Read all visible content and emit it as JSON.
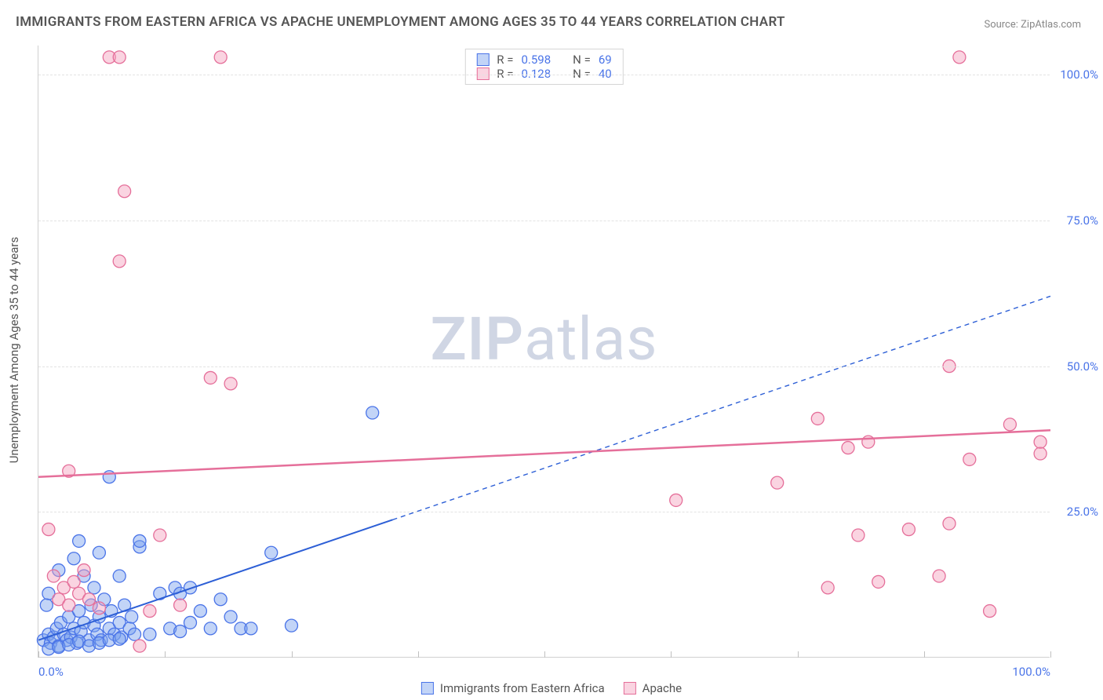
{
  "title": "IMMIGRANTS FROM EASTERN AFRICA VS APACHE UNEMPLOYMENT AMONG AGES 35 TO 44 YEARS CORRELATION CHART",
  "source_prefix": "Source: ",
  "source_link": "ZipAtlas.com",
  "yaxis_label": "Unemployment Among Ages 35 to 44 years",
  "watermark_bold": "ZIP",
  "watermark_rest": "atlas",
  "chart": {
    "type": "scatter",
    "xlim": [
      0,
      100
    ],
    "ylim": [
      0,
      105
    ],
    "xticks": [
      0,
      12.5,
      25,
      37.5,
      50,
      62.5,
      75,
      87.5,
      100
    ],
    "xtick_labels": {
      "0": "0.0%",
      "100": "100.0%"
    },
    "ygrid": [
      25,
      50,
      75,
      100
    ],
    "ytick_labels": {
      "25": "25.0%",
      "50": "50.0%",
      "75": "75.0%",
      "100": "100.0%"
    },
    "grid_color": "#e2e2e2",
    "axis_color": "#d0d0d0",
    "label_color": "#4a74e8",
    "text_color": "#555555",
    "series": [
      {
        "id": "immigrants",
        "label": "Immigrants from Eastern Africa",
        "fill": "rgba(119,160,237,0.45)",
        "stroke": "#4a74e8",
        "marker_r": 8,
        "R": "0.598",
        "N": "69",
        "trend": {
          "y0": 3,
          "y100": 62,
          "color": "#2d5fd6",
          "width": 2,
          "solid_until_x": 35
        },
        "points": [
          [
            0.5,
            3
          ],
          [
            1,
            4
          ],
          [
            1.2,
            2.5
          ],
          [
            1.5,
            3.5
          ],
          [
            1.8,
            5
          ],
          [
            2,
            2
          ],
          [
            2.2,
            6
          ],
          [
            2.5,
            4
          ],
          [
            2.8,
            3
          ],
          [
            3,
            7
          ],
          [
            3.2,
            3.5
          ],
          [
            3.5,
            5
          ],
          [
            3.8,
            2.5
          ],
          [
            4,
            8
          ],
          [
            4.2,
            4.5
          ],
          [
            4.5,
            6
          ],
          [
            5,
            3
          ],
          [
            5.2,
            9
          ],
          [
            5.5,
            5.5
          ],
          [
            5.8,
            4
          ],
          [
            6,
            7
          ],
          [
            6.2,
            3
          ],
          [
            6.5,
            10
          ],
          [
            7,
            5
          ],
          [
            7.2,
            8
          ],
          [
            7.5,
            4
          ],
          [
            8,
            6
          ],
          [
            8.2,
            3.5
          ],
          [
            8.5,
            9
          ],
          [
            9,
            5
          ],
          [
            9.2,
            7
          ],
          [
            9.5,
            4
          ],
          [
            1,
            1.5
          ],
          [
            2,
            1.8
          ],
          [
            3,
            2.2
          ],
          [
            4,
            2.8
          ],
          [
            5,
            2
          ],
          [
            6,
            2.5
          ],
          [
            7,
            3
          ],
          [
            8,
            3.2
          ],
          [
            3.5,
            17
          ],
          [
            4.5,
            14
          ],
          [
            5.5,
            12
          ],
          [
            10,
            19
          ],
          [
            10,
            20
          ],
          [
            11,
            4
          ],
          [
            12,
            11
          ],
          [
            13,
            5
          ],
          [
            13.5,
            12
          ],
          [
            14,
            4.5
          ],
          [
            14,
            11
          ],
          [
            15,
            6
          ],
          [
            15,
            12
          ],
          [
            16,
            8
          ],
          [
            17,
            5
          ],
          [
            18,
            10
          ],
          [
            19,
            7
          ],
          [
            20,
            5
          ],
          [
            21,
            5
          ],
          [
            23,
            18
          ],
          [
            25,
            5.5
          ],
          [
            33,
            42
          ],
          [
            7,
            31
          ],
          [
            1,
            11
          ],
          [
            2,
            15
          ],
          [
            0.8,
            9
          ],
          [
            6,
            18
          ],
          [
            4,
            20
          ],
          [
            8,
            14
          ]
        ]
      },
      {
        "id": "apache",
        "label": "Apache",
        "fill": "rgba(244,160,188,0.45)",
        "stroke": "#e56f9a",
        "marker_r": 8,
        "R": "0.128",
        "N": "40",
        "trend": {
          "y0": 31,
          "y100": 39,
          "color": "#e56f9a",
          "width": 2.5,
          "solid_until_x": 100
        },
        "points": [
          [
            1,
            22
          ],
          [
            1.5,
            14
          ],
          [
            2,
            10
          ],
          [
            2.5,
            12
          ],
          [
            3,
            9
          ],
          [
            3.5,
            13
          ],
          [
            4,
            11
          ],
          [
            4.5,
            15
          ],
          [
            5,
            10
          ],
          [
            6,
            8.5
          ],
          [
            3,
            32
          ],
          [
            7,
            103
          ],
          [
            8,
            103
          ],
          [
            18,
            103
          ],
          [
            8.5,
            80
          ],
          [
            8,
            68
          ],
          [
            10,
            2
          ],
          [
            11,
            8
          ],
          [
            12,
            21
          ],
          [
            14,
            9
          ],
          [
            17,
            48
          ],
          [
            19,
            47
          ],
          [
            63,
            27
          ],
          [
            73,
            30
          ],
          [
            77,
            41
          ],
          [
            78,
            12
          ],
          [
            80,
            36
          ],
          [
            81,
            21
          ],
          [
            82,
            37
          ],
          [
            83,
            13
          ],
          [
            86,
            22
          ],
          [
            89,
            14
          ],
          [
            90,
            50
          ],
          [
            90,
            23
          ],
          [
            91,
            103
          ],
          [
            92,
            34
          ],
          [
            94,
            8
          ],
          [
            96,
            40
          ],
          [
            99,
            35
          ],
          [
            99,
            37
          ]
        ]
      }
    ]
  },
  "legend_stats_rows": [
    {
      "series": 0
    },
    {
      "series": 1
    }
  ]
}
